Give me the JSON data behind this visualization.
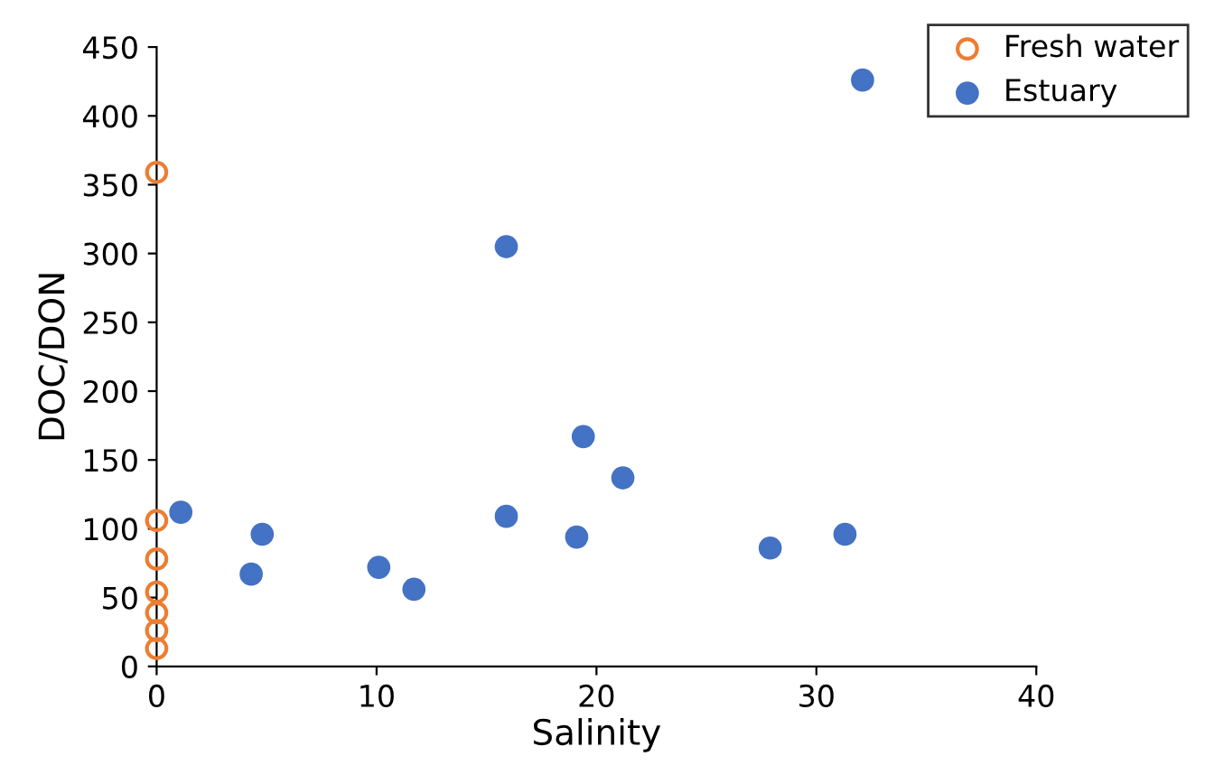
{
  "chart_data": {
    "type": "scatter",
    "xlabel": "Salinity",
    "ylabel": "DOC/DON",
    "xlim": [
      0,
      40
    ],
    "xticks": [
      0,
      10,
      20,
      30,
      40
    ],
    "ylim": [
      0,
      450
    ],
    "yticks": [
      0,
      50,
      100,
      150,
      200,
      250,
      300,
      350,
      400,
      450
    ],
    "grid": false,
    "legend": "top right",
    "marker": "circle",
    "series": [
      {
        "name": "Fresh water",
        "color": "#ed7d31",
        "x": [
          0,
          0,
          0,
          0,
          0,
          0,
          0
        ],
        "values": [
          359,
          106,
          78,
          54,
          39,
          26,
          13
        ]
      },
      {
        "name": "Estuary",
        "color": "#4472c4",
        "x": [
          1.1,
          4.8,
          4.3,
          10.1,
          11.7,
          15.9,
          15.9,
          19.1,
          19.4,
          21.2,
          27.9,
          31.3,
          32.1
        ],
        "values": [
          112,
          96,
          67,
          72,
          56,
          305,
          109,
          94,
          167,
          137,
          86,
          96,
          426
        ]
      }
    ]
  }
}
